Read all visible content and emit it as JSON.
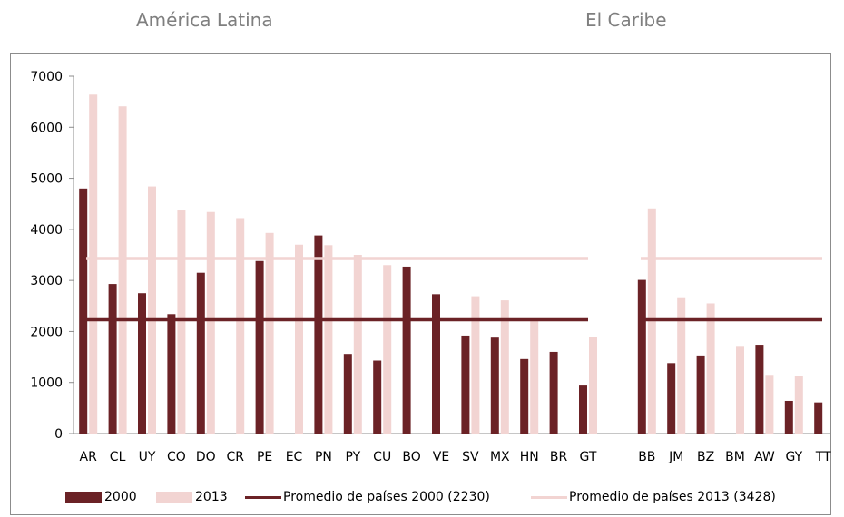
{
  "chart_data": {
    "type": "bar",
    "group_titles": [
      "América Latina",
      "El Caribe"
    ],
    "ylim": [
      0,
      7000
    ],
    "yticks": [
      0,
      1000,
      2000,
      3000,
      4000,
      5000,
      6000,
      7000
    ],
    "grid": false,
    "groups": [
      {
        "name": "América Latina",
        "categories": [
          "AR",
          "CL",
          "UY",
          "CO",
          "DO",
          "CR",
          "PE",
          "EC",
          "PN",
          "PY",
          "CU",
          "BO",
          "VE",
          "SV",
          "MX",
          "HN",
          "BR",
          "GT"
        ],
        "series": [
          {
            "name": "2000",
            "values": [
              4800,
              2930,
              2750,
              2340,
              3150,
              null,
              3380,
              null,
              3880,
              1560,
              1430,
              3270,
              2730,
              1920,
              1880,
              1460,
              1600,
              940
            ]
          },
          {
            "name": "2013",
            "values": [
              6640,
              6410,
              4840,
              4370,
              4340,
              4220,
              3930,
              3700,
              3690,
              3500,
              3300,
              null,
              null,
              2690,
              2610,
              2220,
              null,
              1890
            ]
          }
        ]
      },
      {
        "name": "El Caribe",
        "categories": [
          "BB",
          "JM",
          "BZ",
          "BM",
          "AW",
          "GY",
          "TT"
        ],
        "series": [
          {
            "name": "2000",
            "values": [
              3010,
              1380,
              1530,
              null,
              1740,
              640,
              610
            ]
          },
          {
            "name": "2013",
            "values": [
              4410,
              2670,
              2550,
              1700,
              1150,
              1120,
              null
            ]
          }
        ]
      }
    ],
    "reference_lines": [
      {
        "name": "Promedio de países 2000 (2230)",
        "value": 2230
      },
      {
        "name": "Promedio de países 2013 (3428)",
        "value": 3428
      }
    ],
    "colors": {
      "s2000": "#6b2226",
      "s2013": "#f2d4d2",
      "avg2000": "#6b2226",
      "avg2013": "#f2d4d2"
    },
    "legend": [
      "2000",
      "2013",
      "Promedio de países 2000 (2230)",
      "Promedio de países 2013 (3428)"
    ],
    "legend_position": "bottom"
  }
}
